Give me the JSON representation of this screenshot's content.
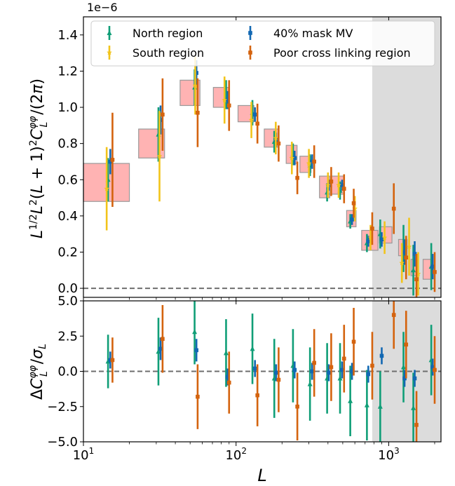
{
  "figure": {
    "scale_factor": "1e−6",
    "xlabel": "L",
    "top_ylabel": "L^{1/2} L^2 (L+1)^2 C_L^{φφ}/(2π)",
    "bottom_ylabel": "ΔC_L^{φφ}/σ_L",
    "legend": [
      {
        "label": "North region",
        "marker": "triangle",
        "color": "#109e77"
      },
      {
        "label": "40% mask MV",
        "marker": "square",
        "color": "#1268b3"
      },
      {
        "label": "South region",
        "marker": "star",
        "color": "#f2c41b"
      },
      {
        "label": "Poor cross linking region",
        "marker": "square",
        "color": "#d4630e"
      }
    ],
    "colors": {
      "north": "#109e77",
      "mask": "#1268b3",
      "south": "#f2c41b",
      "poor": "#d4630e",
      "theory_box": "#ffb3b3",
      "shade": "#dcdcdc"
    },
    "x_ticks": [
      {
        "v": 10,
        "base": "10",
        "exp": "1"
      },
      {
        "v": 100,
        "base": "10",
        "exp": "2"
      },
      {
        "v": 1000,
        "base": "10",
        "exp": "3"
      }
    ],
    "top_y_ticks": [
      "0.0",
      "0.2",
      "0.4",
      "0.6",
      "0.8",
      "1.0",
      "1.2",
      "1.4"
    ],
    "bottom_y_ticks": [
      "−5.0",
      "−2.5",
      "0.0",
      "2.5",
      "5.0"
    ]
  },
  "chart_data": [
    {
      "type": "scatter",
      "panel": "top",
      "xscale": "log",
      "xlim": [
        10,
        2200
      ],
      "ylim": [
        -0.05,
        1.5
      ],
      "y_multiplier": 1e-06,
      "shaded_x_range": [
        780,
        2200
      ],
      "reference_line_y": 0,
      "theory_bins": [
        {
          "x": [
            10,
            20
          ],
          "y": [
            0.48,
            0.69
          ]
        },
        {
          "x": [
            23,
            34
          ],
          "y": [
            0.72,
            0.88
          ]
        },
        {
          "x": [
            43,
            58
          ],
          "y": [
            1.01,
            1.15
          ]
        },
        {
          "x": [
            71,
            90
          ],
          "y": [
            1.0,
            1.11
          ]
        },
        {
          "x": [
            103,
            131
          ],
          "y": [
            0.92,
            1.01
          ]
        },
        {
          "x": [
            153,
            191
          ],
          "y": [
            0.78,
            0.88
          ]
        },
        {
          "x": [
            213,
            251
          ],
          "y": [
            0.69,
            0.79
          ]
        },
        {
          "x": [
            262,
            310
          ],
          "y": [
            0.64,
            0.73
          ]
        },
        {
          "x": [
            352,
            411
          ],
          "y": [
            0.5,
            0.62
          ]
        },
        {
          "x": [
            421,
            511
          ],
          "y": [
            0.52,
            0.62
          ]
        },
        {
          "x": [
            530,
            611
          ],
          "y": [
            0.34,
            0.43
          ]
        },
        {
          "x": [
            665,
            850
          ],
          "y": [
            0.21,
            0.32
          ]
        },
        {
          "x": [
            870,
            1050
          ],
          "y": [
            0.25,
            0.34
          ]
        },
        {
          "x": [
            1160,
            1320
          ],
          "y": [
            0.18,
            0.27
          ]
        },
        {
          "x": [
            1400,
            1530
          ],
          "y": [
            0.07,
            0.16
          ]
        },
        {
          "x": [
            1680,
            1900
          ],
          "y": [
            0.05,
            0.16
          ]
        }
      ],
      "series": [
        {
          "name": "North region",
          "marker": "triangle",
          "color": "#109e77",
          "points": [
            {
              "x": 14.5,
              "y": 0.6,
              "err": 0.12
            },
            {
              "x": 31,
              "y": 0.85,
              "err": 0.15
            },
            {
              "x": 53.5,
              "y": 1.11,
              "err": 0.1
            },
            {
              "x": 86,
              "y": 1.07,
              "err": 0.08
            },
            {
              "x": 128,
              "y": 0.97,
              "err": 0.07
            },
            {
              "x": 178,
              "y": 0.81,
              "err": 0.06
            },
            {
              "x": 236,
              "y": 0.74,
              "err": 0.06
            },
            {
              "x": 305,
              "y": 0.68,
              "err": 0.06
            },
            {
              "x": 395,
              "y": 0.53,
              "err": 0.05
            },
            {
              "x": 480,
              "y": 0.54,
              "err": 0.05
            },
            {
              "x": 560,
              "y": 0.37,
              "err": 0.04
            },
            {
              "x": 720,
              "y": 0.25,
              "err": 0.05
            },
            {
              "x": 880,
              "y": 0.3,
              "err": 0.08
            },
            {
              "x": 1250,
              "y": 0.22,
              "err": 0.13
            },
            {
              "x": 1450,
              "y": 0.1,
              "err": 0.14
            },
            {
              "x": 1900,
              "y": 0.12,
              "err": 0.13
            }
          ]
        },
        {
          "name": "40% mask MV",
          "marker": "square",
          "color": "#1268b3",
          "points": [
            {
              "x": 15,
              "y": 0.7,
              "err": 0.07
            },
            {
              "x": 32,
              "y": 0.93,
              "err": 0.08
            },
            {
              "x": 55,
              "y": 1.19,
              "err": 0.07
            },
            {
              "x": 88,
              "y": 1.04,
              "err": 0.05
            },
            {
              "x": 133,
              "y": 0.96,
              "err": 0.04
            },
            {
              "x": 183,
              "y": 0.82,
              "err": 0.04
            },
            {
              "x": 242,
              "y": 0.72,
              "err": 0.04
            },
            {
              "x": 315,
              "y": 0.7,
              "err": 0.04
            },
            {
              "x": 405,
              "y": 0.57,
              "err": 0.03
            },
            {
              "x": 495,
              "y": 0.57,
              "err": 0.03
            },
            {
              "x": 575,
              "y": 0.38,
              "err": 0.03
            },
            {
              "x": 735,
              "y": 0.26,
              "err": 0.03
            },
            {
              "x": 900,
              "y": 0.27,
              "err": 0.04
            },
            {
              "x": 1270,
              "y": 0.2,
              "err": 0.07
            },
            {
              "x": 1480,
              "y": 0.19,
              "err": 0.07
            },
            {
              "x": 1940,
              "y": 0.12,
              "err": 0.07
            }
          ]
        },
        {
          "name": "South region",
          "marker": "star",
          "color": "#f2c41b",
          "points": [
            {
              "x": 14.2,
              "y": 0.55,
              "err": 0.23
            },
            {
              "x": 31.5,
              "y": 0.73,
              "err": 0.25
            },
            {
              "x": 54,
              "y": 1.12,
              "err": 0.16
            },
            {
              "x": 84,
              "y": 1.04,
              "err": 0.13
            },
            {
              "x": 126,
              "y": 0.93,
              "err": 0.1
            },
            {
              "x": 182,
              "y": 0.83,
              "err": 0.09
            },
            {
              "x": 232,
              "y": 0.72,
              "err": 0.09
            },
            {
              "x": 300,
              "y": 0.69,
              "err": 0.08
            },
            {
              "x": 400,
              "y": 0.57,
              "err": 0.07
            },
            {
              "x": 470,
              "y": 0.57,
              "err": 0.07
            },
            {
              "x": 600,
              "y": 0.44,
              "err": 0.07
            },
            {
              "x": 760,
              "y": 0.28,
              "err": 0.07
            },
            {
              "x": 940,
              "y": 0.28,
              "err": 0.09
            },
            {
              "x": 1220,
              "y": 0.14,
              "err": 0.11
            },
            {
              "x": 1360,
              "y": 0.23,
              "err": 0.16
            },
            {
              "x": 1560,
              "y": 0.08,
              "err": 0.12
            }
          ]
        },
        {
          "name": "Poor cross linking region",
          "marker": "square",
          "color": "#d4630e",
          "points": [
            {
              "x": 15.5,
              "y": 0.71,
              "err": 0.26
            },
            {
              "x": 33,
              "y": 0.96,
              "err": 0.2
            },
            {
              "x": 56,
              "y": 0.97,
              "err": 0.19
            },
            {
              "x": 90,
              "y": 1.01,
              "err": 0.14
            },
            {
              "x": 138,
              "y": 0.91,
              "err": 0.11
            },
            {
              "x": 190,
              "y": 0.8,
              "err": 0.1
            },
            {
              "x": 252,
              "y": 0.61,
              "err": 0.09
            },
            {
              "x": 325,
              "y": 0.7,
              "err": 0.09
            },
            {
              "x": 420,
              "y": 0.59,
              "err": 0.08
            },
            {
              "x": 510,
              "y": 0.55,
              "err": 0.08
            },
            {
              "x": 590,
              "y": 0.47,
              "err": 0.08
            },
            {
              "x": 780,
              "y": 0.33,
              "err": 0.09
            },
            {
              "x": 1080,
              "y": 0.44,
              "err": 0.14
            },
            {
              "x": 1300,
              "y": 0.17,
              "err": 0.12
            },
            {
              "x": 1520,
              "y": 0.05,
              "err": 0.14
            },
            {
              "x": 2000,
              "y": 0.09,
              "err": 0.11
            }
          ]
        }
      ]
    },
    {
      "type": "scatter",
      "panel": "bottom",
      "xscale": "log",
      "xlim": [
        10,
        2200
      ],
      "ylim": [
        -5,
        5
      ],
      "shaded_x_range": [
        780,
        2200
      ],
      "reference_line_y": 0,
      "series": [
        {
          "name": "North region",
          "marker": "triangle",
          "color": "#109e77",
          "points": [
            {
              "x": 14.5,
              "y": 0.7,
              "err": 1.9
            },
            {
              "x": 31,
              "y": 1.4,
              "err": 2.4
            },
            {
              "x": 53.5,
              "y": 2.8,
              "err": 2.3
            },
            {
              "x": 86,
              "y": 1.3,
              "err": 2.4
            },
            {
              "x": 128,
              "y": 1.6,
              "err": 2.5
            },
            {
              "x": 178,
              "y": -0.5,
              "err": 2.8
            },
            {
              "x": 236,
              "y": 0.4,
              "err": 2.6
            },
            {
              "x": 305,
              "y": -0.9,
              "err": 2.6
            },
            {
              "x": 395,
              "y": -0.5,
              "err": 2.5
            },
            {
              "x": 480,
              "y": -0.5,
              "err": 2.5
            },
            {
              "x": 560,
              "y": -2.1,
              "err": 2.5
            },
            {
              "x": 720,
              "y": -2.4,
              "err": 2.5
            },
            {
              "x": 880,
              "y": -2.5,
              "err": 2.5
            },
            {
              "x": 1250,
              "y": 0.3,
              "err": 2.5
            },
            {
              "x": 1450,
              "y": -2.6,
              "err": 2.5
            },
            {
              "x": 1900,
              "y": 0.8,
              "err": 2.5
            }
          ]
        },
        {
          "name": "40% mask MV",
          "marker": "square",
          "color": "#1268b3",
          "points": [
            {
              "x": 15,
              "y": 0.8,
              "err": 0.6
            },
            {
              "x": 32,
              "y": 1.6,
              "err": 0.8
            },
            {
              "x": 55,
              "y": 1.5,
              "err": 0.8
            },
            {
              "x": 88,
              "y": -0.4,
              "err": 0.6
            },
            {
              "x": 133,
              "y": 0.2,
              "err": 0.6
            },
            {
              "x": 183,
              "y": -0.1,
              "err": 0.6
            },
            {
              "x": 242,
              "y": 0.1,
              "err": 0.6
            },
            {
              "x": 315,
              "y": 0.0,
              "err": 0.6
            },
            {
              "x": 405,
              "y": -0.1,
              "err": 0.6
            },
            {
              "x": 495,
              "y": 0.1,
              "err": 0.6
            },
            {
              "x": 575,
              "y": 0.0,
              "err": 0.6
            },
            {
              "x": 735,
              "y": -0.2,
              "err": 0.6
            },
            {
              "x": 900,
              "y": 1.1,
              "err": 0.6
            },
            {
              "x": 1270,
              "y": -0.5,
              "err": 0.6
            },
            {
              "x": 1480,
              "y": -0.5,
              "err": 0.6
            },
            {
              "x": 1940,
              "y": 0.3,
              "err": 0.6
            }
          ]
        },
        {
          "name": "South region",
          "marker": "star",
          "color": "#f2c41b",
          "points": []
        },
        {
          "name": "Poor cross linking region",
          "marker": "square",
          "color": "#d4630e",
          "points": [
            {
              "x": 15.5,
              "y": 0.8,
              "err": 1.6
            },
            {
              "x": 33,
              "y": 2.3,
              "err": 2.4
            },
            {
              "x": 56,
              "y": -1.8,
              "err": 2.3
            },
            {
              "x": 90,
              "y": -0.8,
              "err": 2.2
            },
            {
              "x": 138,
              "y": -1.7,
              "err": 2.2
            },
            {
              "x": 190,
              "y": -0.6,
              "err": 2.3
            },
            {
              "x": 252,
              "y": -2.5,
              "err": 2.4
            },
            {
              "x": 325,
              "y": 0.6,
              "err": 2.4
            },
            {
              "x": 420,
              "y": 0.3,
              "err": 2.4
            },
            {
              "x": 510,
              "y": 0.9,
              "err": 2.4
            },
            {
              "x": 590,
              "y": 2.1,
              "err": 2.4
            },
            {
              "x": 780,
              "y": 0.4,
              "err": 2.4
            },
            {
              "x": 1080,
              "y": 4.0,
              "err": 2.4
            },
            {
              "x": 1300,
              "y": 1.9,
              "err": 2.4
            },
            {
              "x": 1520,
              "y": -3.8,
              "err": 2.4
            },
            {
              "x": 2000,
              "y": 0.1,
              "err": 2.4
            }
          ]
        }
      ]
    }
  ]
}
